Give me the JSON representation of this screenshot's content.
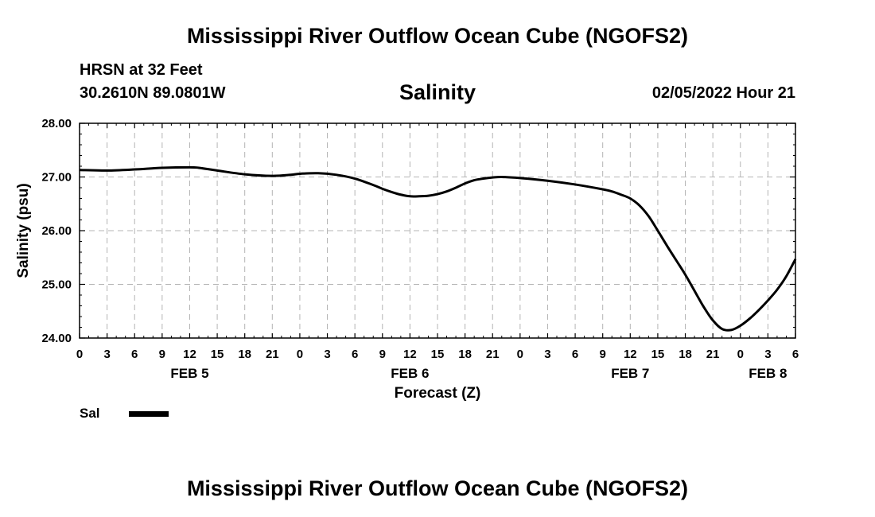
{
  "header": {
    "title": "Mississippi River Outflow Ocean Cube (NGOFS2)",
    "station": "HRSN at 32 Feet",
    "coords": "30.2610N  89.0801W",
    "datetime": "02/05/2022 Hour 21",
    "footer_title": "Mississippi River Outflow Ocean Cube (NGOFS2)"
  },
  "chart_data": {
    "type": "line",
    "title": "Salinity",
    "xlabel": "Forecast (Z)",
    "ylabel": "Salinity (psu)",
    "ylim": [
      24.0,
      28.0
    ],
    "yticks": [
      "28.00",
      "27.00",
      "26.00",
      "25.00",
      "24.00"
    ],
    "xlim_hours": [
      0,
      78
    ],
    "xticks": [
      "0",
      "3",
      "6",
      "9",
      "12",
      "15",
      "18",
      "21",
      "0",
      "3",
      "6",
      "9",
      "12",
      "15",
      "18",
      "21",
      "0",
      "3",
      "6",
      "9",
      "12",
      "15",
      "18",
      "21",
      "0",
      "3",
      "6"
    ],
    "day_labels": [
      {
        "label": "FEB 5",
        "hour": 12
      },
      {
        "label": "FEB 6",
        "hour": 36
      },
      {
        "label": "FEB 7",
        "hour": 60
      },
      {
        "label": "FEB 8",
        "hour": 75
      }
    ],
    "grid": true,
    "legend": "bottom-left",
    "series": [
      {
        "name": "Sal",
        "x": [
          0,
          3,
          6,
          9,
          12,
          13,
          15,
          18,
          21,
          23,
          24,
          26,
          28,
          30,
          32,
          33,
          34,
          35,
          36,
          37,
          38,
          39,
          40,
          41,
          42,
          43,
          44,
          45,
          46,
          48,
          51,
          54,
          57,
          58,
          59,
          60,
          61,
          62,
          63,
          64,
          65,
          66,
          67,
          68,
          69,
          70,
          71,
          72,
          73,
          74,
          75,
          76,
          77,
          78
        ],
        "y": [
          27.13,
          27.12,
          27.14,
          27.17,
          27.18,
          27.17,
          27.12,
          27.05,
          27.02,
          27.04,
          27.06,
          27.07,
          27.04,
          26.97,
          26.85,
          26.78,
          26.72,
          26.67,
          26.64,
          26.64,
          26.65,
          26.68,
          26.73,
          26.8,
          26.88,
          26.94,
          26.97,
          26.99,
          27.0,
          26.98,
          26.93,
          26.86,
          26.77,
          26.73,
          26.67,
          26.6,
          26.47,
          26.27,
          26.0,
          25.72,
          25.45,
          25.18,
          24.88,
          24.58,
          24.33,
          24.17,
          24.15,
          24.23,
          24.36,
          24.52,
          24.7,
          24.9,
          25.15,
          25.47
        ]
      }
    ]
  },
  "legend": {
    "series_label": "Sal"
  }
}
